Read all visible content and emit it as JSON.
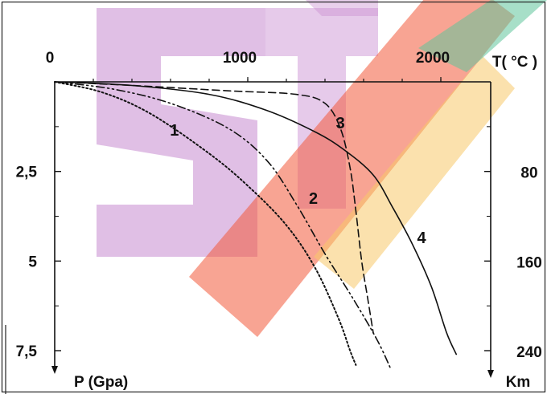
{
  "chart_data": {
    "type": "line",
    "x_axis": {
      "label": "T( °C )",
      "ticks": [
        "0",
        "1000",
        "2000"
      ],
      "range": [
        0,
        2400
      ]
    },
    "y_left_axis": {
      "label": "P (Gpa)",
      "ticks": [
        "2,5",
        "5",
        "7,5"
      ],
      "range": [
        0,
        8
      ]
    },
    "y_right_axis": {
      "label": "Km",
      "ticks": [
        "80",
        "160",
        "240"
      ]
    },
    "series": [
      {
        "name": "1",
        "style": "dotted",
        "points": [
          [
            0,
            0
          ],
          [
            250,
            0.3
          ],
          [
            500,
            0.9
          ],
          [
            800,
            2.0
          ],
          [
            1000,
            2.9
          ],
          [
            1200,
            4.0
          ],
          [
            1350,
            5.2
          ],
          [
            1470,
            6.6
          ],
          [
            1530,
            7.5
          ],
          [
            1560,
            7.9
          ]
        ]
      },
      {
        "name": "2",
        "style": "dash-dot-dot",
        "points": [
          [
            0,
            0
          ],
          [
            300,
            0.2
          ],
          [
            600,
            0.6
          ],
          [
            900,
            1.3
          ],
          [
            1100,
            2.2
          ],
          [
            1250,
            3.4
          ],
          [
            1400,
            4.8
          ],
          [
            1540,
            6.0
          ],
          [
            1670,
            7.2
          ],
          [
            1740,
            8.0
          ]
        ]
      },
      {
        "name": "3",
        "style": "dashed",
        "points": [
          [
            0,
            0
          ],
          [
            400,
            0.1
          ],
          [
            900,
            0.25
          ],
          [
            1250,
            0.35
          ],
          [
            1400,
            0.6
          ],
          [
            1480,
            1.3
          ],
          [
            1530,
            2.4
          ],
          [
            1560,
            3.6
          ],
          [
            1590,
            5.0
          ],
          [
            1620,
            6.0
          ],
          [
            1650,
            7.0
          ]
        ]
      },
      {
        "name": "4",
        "style": "solid",
        "points": [
          [
            0,
            0
          ],
          [
            400,
            0.1
          ],
          [
            800,
            0.35
          ],
          [
            1100,
            0.8
          ],
          [
            1350,
            1.4
          ],
          [
            1500,
            1.9
          ],
          [
            1650,
            2.6
          ],
          [
            1750,
            3.5
          ],
          [
            1850,
            4.5
          ],
          [
            1950,
            5.7
          ],
          [
            2030,
            7.0
          ],
          [
            2080,
            7.6
          ]
        ]
      }
    ],
    "curve_labels": [
      {
        "text": "1",
        "at": [
          620,
          1.5
        ]
      },
      {
        "text": "2",
        "at": [
          1340,
          3.4
        ]
      },
      {
        "text": "3",
        "at": [
          1480,
          1.3
        ]
      },
      {
        "text": "4",
        "at": [
          1900,
          4.5
        ]
      }
    ],
    "watermark": {
      "colors": [
        "#c78ad0",
        "#f25a3a",
        "#f7c96a",
        "#5ec49a"
      ]
    }
  }
}
